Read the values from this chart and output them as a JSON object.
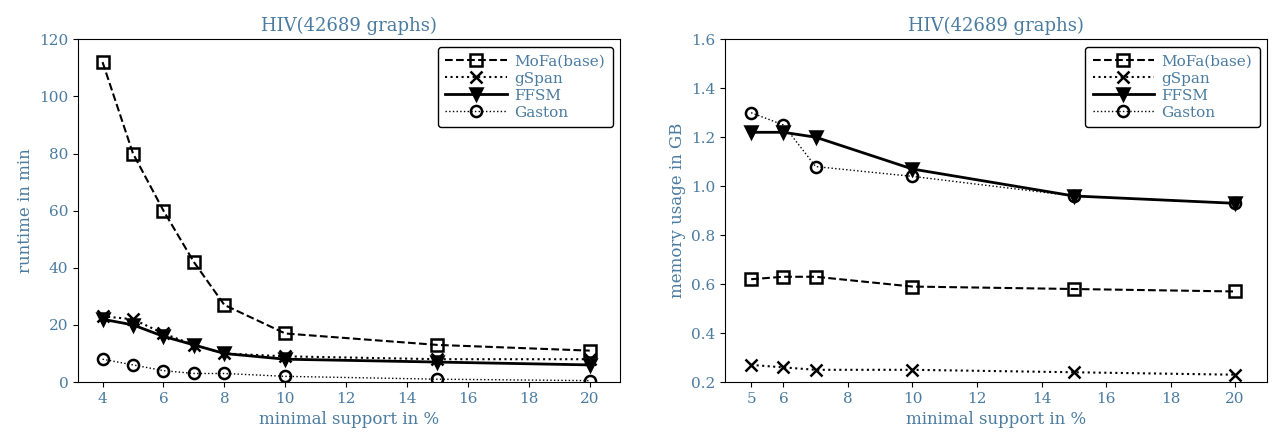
{
  "left": {
    "title": "HIV(42689 graphs)",
    "xlabel": "minimal support in %",
    "ylabel": "runtime in min",
    "ylim": [
      0,
      120
    ],
    "yticks": [
      0,
      20,
      40,
      60,
      80,
      100,
      120
    ],
    "xlim": [
      3.2,
      21
    ],
    "xticks": [
      4,
      6,
      8,
      10,
      12,
      14,
      16,
      18,
      20
    ],
    "series": {
      "MoFa(base)": {
        "x": [
          4,
          5,
          6,
          7,
          8,
          10,
          15,
          20
        ],
        "y": [
          112,
          80,
          60,
          42,
          27,
          17,
          13,
          11
        ],
        "linestyle": "--",
        "marker": "s",
        "linewidth": 1.5,
        "markersize": 8,
        "fillstyle": "none",
        "dashes": [
          6,
          3
        ]
      },
      "gSpan": {
        "x": [
          4,
          5,
          6,
          7,
          8,
          10,
          15,
          20
        ],
        "y": [
          23,
          22,
          17,
          13,
          10,
          9,
          8,
          8
        ],
        "linestyle": ":",
        "marker": "x",
        "linewidth": 1.5,
        "markersize": 8,
        "fillstyle": "full",
        "dashes": [
          1,
          2
        ]
      },
      "FFSM": {
        "x": [
          4,
          5,
          6,
          7,
          8,
          10,
          15,
          20
        ],
        "y": [
          22,
          20,
          16,
          13,
          10,
          8,
          7,
          6
        ],
        "linestyle": "-",
        "marker": "v",
        "linewidth": 2.0,
        "markersize": 8,
        "fillstyle": "full",
        "dashes": []
      },
      "Gaston": {
        "x": [
          4,
          5,
          6,
          7,
          8,
          10,
          15,
          20
        ],
        "y": [
          8,
          6,
          4,
          3,
          3,
          2,
          1,
          0.5
        ],
        "linestyle": ":",
        "marker": "o",
        "linewidth": 1.0,
        "markersize": 8,
        "fillstyle": "none",
        "dashes": [
          1,
          3
        ]
      }
    },
    "legend_order": [
      "MoFa(base)",
      "gSpan",
      "FFSM",
      "Gaston"
    ]
  },
  "right": {
    "title": "HIV(42689 graphs)",
    "xlabel": "minimal support in %",
    "ylabel": "memory usage in GB",
    "ylim": [
      0.2,
      1.6
    ],
    "yticks": [
      0.2,
      0.4,
      0.6,
      0.8,
      1.0,
      1.2,
      1.4,
      1.6
    ],
    "xlim": [
      4.2,
      21
    ],
    "xticks": [
      5,
      6,
      8,
      10,
      12,
      14,
      16,
      18,
      20
    ],
    "series": {
      "MoFa(base)": {
        "x": [
          5,
          6,
          7,
          10,
          15,
          20
        ],
        "y": [
          0.62,
          0.63,
          0.63,
          0.59,
          0.58,
          0.57
        ],
        "linestyle": "--",
        "marker": "s",
        "linewidth": 1.5,
        "markersize": 8,
        "fillstyle": "none",
        "dashes": [
          6,
          3
        ]
      },
      "gSpan": {
        "x": [
          5,
          6,
          7,
          10,
          15,
          20
        ],
        "y": [
          0.27,
          0.26,
          0.25,
          0.25,
          0.24,
          0.23
        ],
        "linestyle": ":",
        "marker": "x",
        "linewidth": 1.5,
        "markersize": 8,
        "fillstyle": "full",
        "dashes": [
          1,
          2
        ]
      },
      "FFSM": {
        "x": [
          5,
          6,
          7,
          10,
          15,
          20
        ],
        "y": [
          1.22,
          1.22,
          1.2,
          1.07,
          0.96,
          0.93
        ],
        "linestyle": "-",
        "marker": "v",
        "linewidth": 2.0,
        "markersize": 8,
        "fillstyle": "full",
        "dashes": []
      },
      "Gaston": {
        "x": [
          5,
          6,
          7,
          10,
          15,
          20
        ],
        "y": [
          1.3,
          1.25,
          1.08,
          1.04,
          0.96,
          0.93
        ],
        "linestyle": ":",
        "marker": "o",
        "linewidth": 1.0,
        "markersize": 8,
        "fillstyle": "none",
        "dashes": [
          1,
          3
        ]
      }
    },
    "legend_order": [
      "MoFa(base)",
      "gSpan",
      "FFSM",
      "Gaston"
    ]
  },
  "text_color": "#4a7ba0",
  "label_fontsize": 12,
  "title_fontsize": 13,
  "tick_fontsize": 11,
  "legend_fontsize": 11
}
